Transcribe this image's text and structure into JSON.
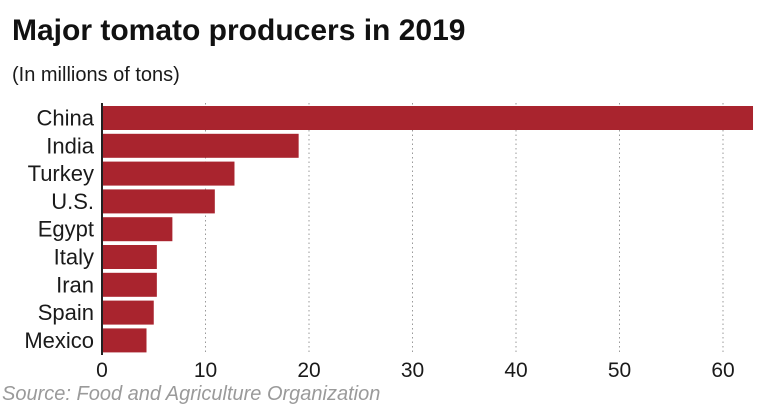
{
  "title": "Major tomato producers in 2019",
  "subtitle": "(In millions of tons)",
  "source": "Source: Food and Agriculture Organization",
  "colors": {
    "bar": "#a9242e",
    "grid": "#9a9a9a",
    "axis": "#222222",
    "text": "#1a1a1a"
  },
  "chart_data": {
    "type": "bar",
    "orientation": "horizontal",
    "title": "Major tomato producers in 2019",
    "subtitle": "(In millions of tons)",
    "categories": [
      "China",
      "India",
      "Turkey",
      "U.S.",
      "Egypt",
      "Italy",
      "Iran",
      "Spain",
      "Mexico"
    ],
    "values": [
      62.9,
      19.0,
      12.8,
      10.9,
      6.8,
      5.3,
      5.3,
      5.0,
      4.3
    ],
    "xlabel": "",
    "ylabel": "",
    "xlim": [
      0,
      63
    ],
    "xticks": [
      0,
      10,
      20,
      30,
      40,
      50,
      60
    ],
    "xtick_labels": [
      "0",
      "10",
      "20",
      "30",
      "40",
      "50",
      "60"
    ],
    "grid": "vertical dotted"
  }
}
